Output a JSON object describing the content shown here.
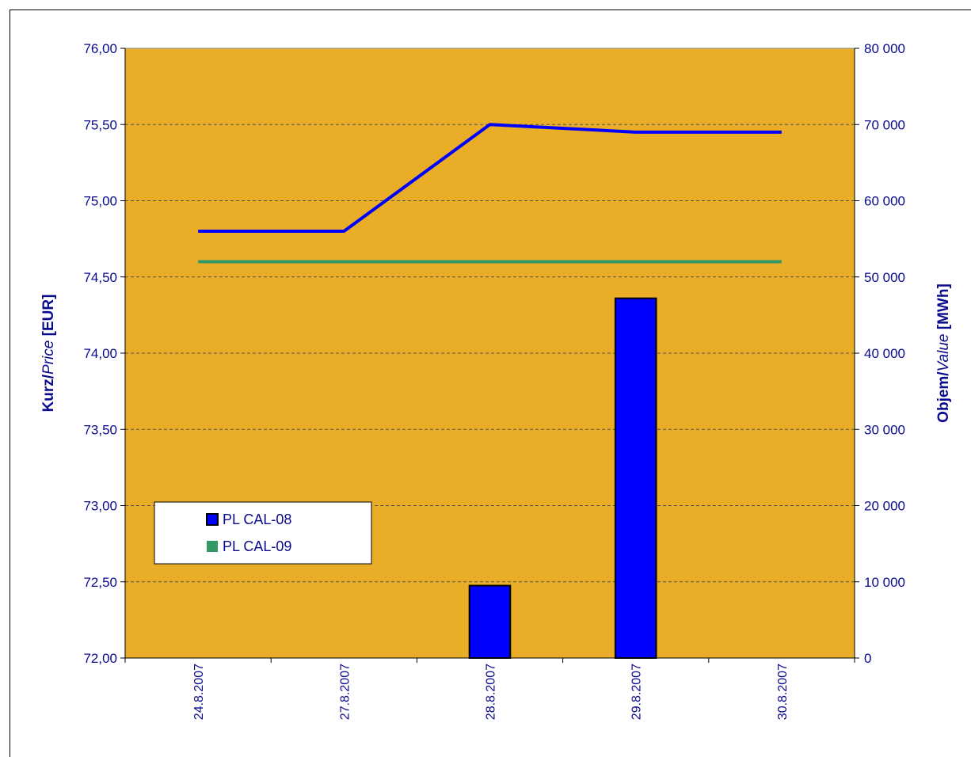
{
  "chart_data": {
    "type": "bar+line",
    "categories": [
      "24.8.2007",
      "27.8.2007",
      "28.8.2007",
      "29.8.2007",
      "30.8.2007"
    ],
    "bars": {
      "name": "PL CAL-08",
      "axis": "right",
      "values": [
        0,
        0,
        9500,
        47200,
        0
      ],
      "color": "#0000ff"
    },
    "lines": [
      {
        "name": "PL CAL-08",
        "axis": "left",
        "values": [
          74.8,
          74.8,
          75.5,
          75.45,
          75.45
        ],
        "color": "#0000ff"
      },
      {
        "name": "PL CAL-09",
        "axis": "left",
        "values": [
          74.6,
          74.6,
          74.6,
          74.6,
          74.6
        ],
        "color": "#339966"
      }
    ],
    "y_left": {
      "title_bold": "Kurz/",
      "title_italic": "Price",
      "title_unit": " [EUR]",
      "ylim": [
        72.0,
        76.0
      ],
      "ticks": [
        "72,00",
        "72,50",
        "73,00",
        "73,50",
        "74,00",
        "74,50",
        "75,00",
        "75,50",
        "76,00"
      ]
    },
    "y_right": {
      "title_bold": "Objem/",
      "title_italic": "Value",
      "title_unit": " [MWh]",
      "ylim": [
        0,
        80000
      ],
      "ticks": [
        "0",
        "10 000",
        "20 000",
        "30 000",
        "40 000",
        "50 000",
        "60 000",
        "70 000",
        "80 000"
      ]
    },
    "legend": {
      "position": "lower-left",
      "entries": [
        {
          "label": "PL CAL-08",
          "color": "#0000ff"
        },
        {
          "label": "PL CAL-09",
          "color": "#339966"
        }
      ]
    },
    "plot_background": "#e9ad28",
    "grid": true
  }
}
